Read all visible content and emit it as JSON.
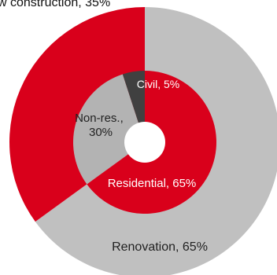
{
  "chart_data": {
    "type": "pie",
    "title": "",
    "top_label_cropped": "w construction, 35%",
    "outer_ring": {
      "slices": [
        {
          "name": "Renovation",
          "label": "Renovation, 65%",
          "value": 65,
          "color": "#c0c0c0",
          "label_color": "#222222"
        },
        {
          "name": "New construction",
          "label": "",
          "value": 35,
          "color": "#d9001b",
          "label_color": "#ffffff"
        }
      ]
    },
    "inner_ring": {
      "slices": [
        {
          "name": "Residential",
          "label": "Residential, 65%",
          "value": 65,
          "color": "#d9001b",
          "label_color": "#ffffff"
        },
        {
          "name": "Non-res.",
          "label_lines": [
            "Non-res.,",
            "30%"
          ],
          "value": 30,
          "color": "#b3b3b3",
          "label_color": "#222222"
        },
        {
          "name": "Civil",
          "label": "Civil, 5%",
          "value": 5,
          "color": "#404040",
          "label_color": "#ffffff"
        }
      ]
    }
  }
}
